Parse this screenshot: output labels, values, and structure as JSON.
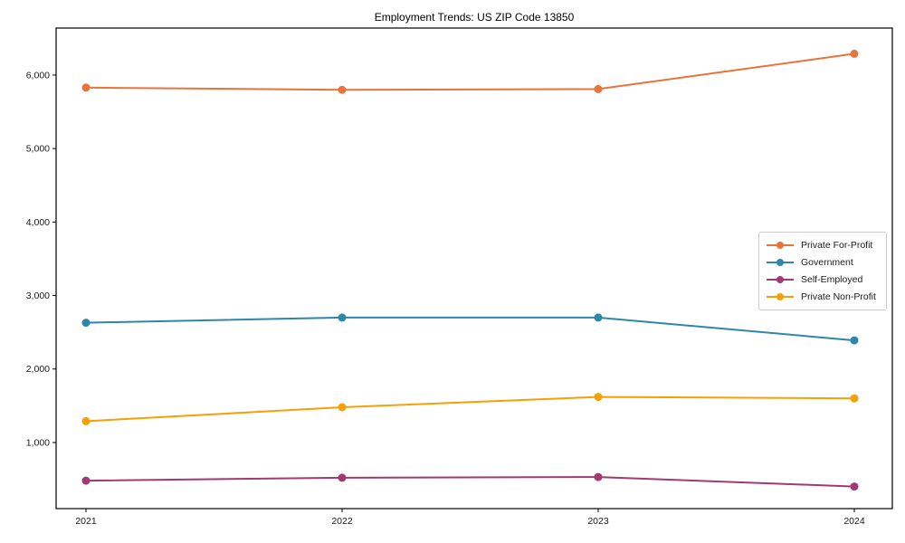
{
  "chart_data": {
    "type": "line",
    "title": "Employment Trends: US ZIP Code 13850",
    "xlabel": "",
    "ylabel": "",
    "grid": false,
    "legend_position": "center-right",
    "x": [
      2021,
      2022,
      2023,
      2024
    ],
    "x_tick_labels": [
      "2021",
      "2022",
      "2023",
      "2024"
    ],
    "y_tick_values": [
      1000,
      2000,
      3000,
      4000,
      5000,
      6000
    ],
    "y_tick_labels": [
      "1,000",
      "2,000",
      "3,000",
      "4,000",
      "5,000",
      "6,000"
    ],
    "ylim": [
      100,
      6640
    ],
    "series": [
      {
        "name": "Private For-Profit",
        "color": "#E8743B",
        "values": [
          5830,
          5800,
          5810,
          6290
        ]
      },
      {
        "name": "Government",
        "color": "#2E87A8",
        "values": [
          2630,
          2700,
          2700,
          2390
        ]
      },
      {
        "name": "Self-Employed",
        "color": "#A13A70",
        "values": [
          480,
          520,
          530,
          400
        ]
      },
      {
        "name": "Private Non-Profit",
        "color": "#F5A004",
        "values": [
          1290,
          1480,
          1620,
          1600
        ]
      }
    ]
  }
}
